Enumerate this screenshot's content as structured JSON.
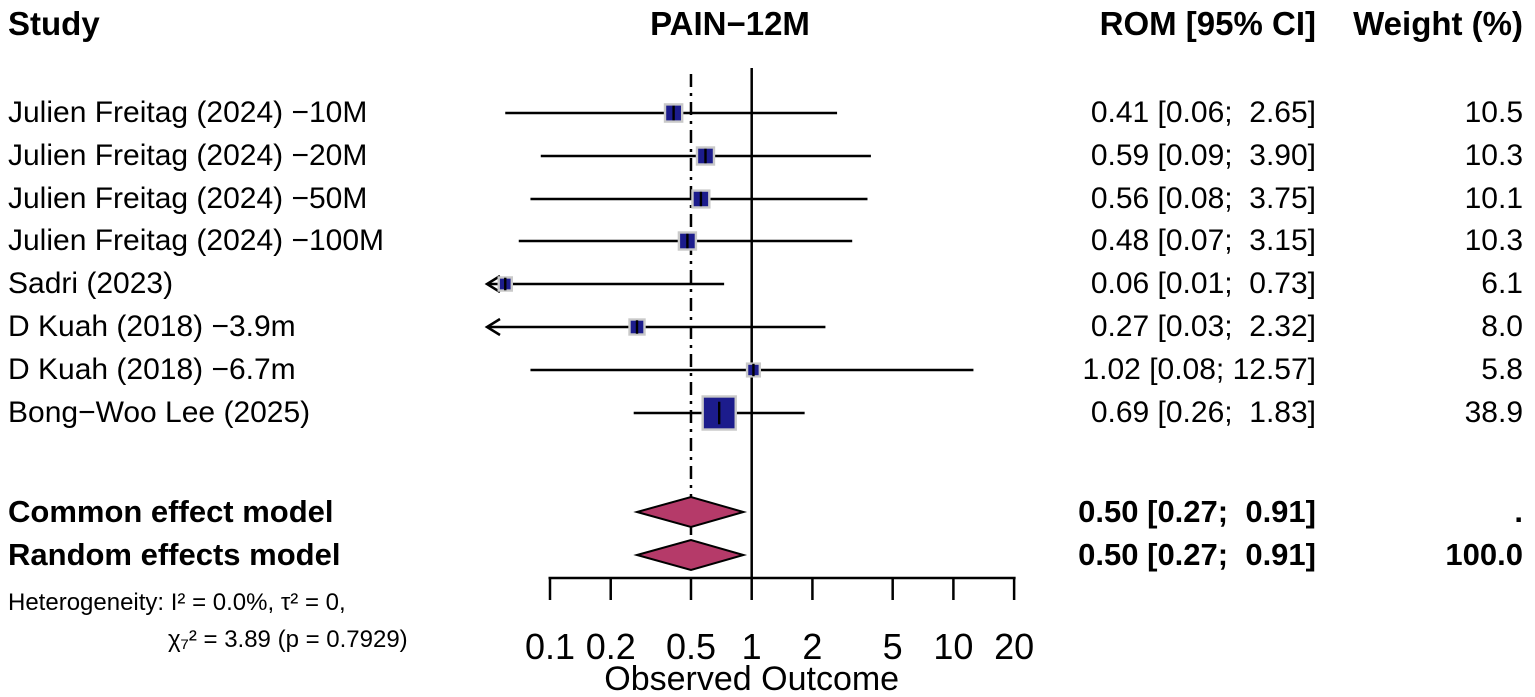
{
  "header": {
    "study": "Study",
    "plot_title": "PAIN−12M",
    "rom_ci": "ROM [95% CI]",
    "weight": "Weight (%)"
  },
  "chart_data": {
    "type": "forest",
    "x_scale": "log10",
    "x_min": 0.1,
    "x_max": 20,
    "x_ticks": [
      0.1,
      0.2,
      0.5,
      1,
      2,
      5,
      10,
      20
    ],
    "xlabel": "Observed Outcome",
    "null_value": 1,
    "pooled_line_value": 0.5,
    "grid": false,
    "studies": [
      {
        "label": "Julien Freitag (2024) −10M",
        "est": 0.41,
        "lo": 0.06,
        "hi": 2.65,
        "rom": "0.41 [0.06;  2.65]",
        "weight": 10.5,
        "weight_label": "10.5",
        "arrow_lo": false
      },
      {
        "label": "Julien Freitag (2024) −20M",
        "est": 0.59,
        "lo": 0.09,
        "hi": 3.9,
        "rom": "0.59 [0.09;  3.90]",
        "weight": 10.3,
        "weight_label": "10.3",
        "arrow_lo": false
      },
      {
        "label": "Julien Freitag (2024) −50M",
        "est": 0.56,
        "lo": 0.08,
        "hi": 3.75,
        "rom": "0.56 [0.08;  3.75]",
        "weight": 10.1,
        "weight_label": "10.1",
        "arrow_lo": false
      },
      {
        "label": "Julien Freitag (2024) −100M",
        "est": 0.48,
        "lo": 0.07,
        "hi": 3.15,
        "rom": "0.48 [0.07;  3.15]",
        "weight": 10.3,
        "weight_label": "10.3",
        "arrow_lo": false
      },
      {
        "label": "Sadri (2023)",
        "est": 0.06,
        "lo": 0.01,
        "hi": 0.73,
        "rom": "0.06 [0.01;  0.73]",
        "weight": 6.1,
        "weight_label": "6.1",
        "arrow_lo": true
      },
      {
        "label": "D Kuah (2018) −3.9m",
        "est": 0.27,
        "lo": 0.03,
        "hi": 2.32,
        "rom": "0.27 [0.03;  2.32]",
        "weight": 8.0,
        "weight_label": "8.0",
        "arrow_lo": true
      },
      {
        "label": "D Kuah (2018) −6.7m",
        "est": 1.02,
        "lo": 0.08,
        "hi": 12.57,
        "rom": "1.02 [0.08; 12.57]",
        "weight": 5.8,
        "weight_label": "5.8",
        "arrow_lo": false
      },
      {
        "label": "Bong−Woo Lee (2025)",
        "est": 0.69,
        "lo": 0.26,
        "hi": 1.83,
        "rom": "0.69 [0.26;  1.83]",
        "weight": 38.9,
        "weight_label": "38.9",
        "arrow_lo": false
      }
    ],
    "models": [
      {
        "label": "Common effect model",
        "est": 0.5,
        "lo": 0.27,
        "hi": 0.91,
        "rom": "0.50 [0.27;  0.91]",
        "weight_label": "."
      },
      {
        "label": "Random effects model",
        "est": 0.5,
        "lo": 0.27,
        "hi": 0.91,
        "rom": "0.50 [0.27;  0.91]",
        "weight_label": "100.0"
      }
    ],
    "heterogeneity": {
      "line1": "Heterogeneity: I² = 0.0%, τ² = 0,",
      "line2": "χ₇² = 3.89 (p = 0.7929)"
    }
  },
  "colors": {
    "square_fill": "#1c1c8c",
    "square_border": "#c9c9c9",
    "diamond_fill": "#b53a69",
    "diamond_border": "#000000",
    "line": "#000000"
  }
}
